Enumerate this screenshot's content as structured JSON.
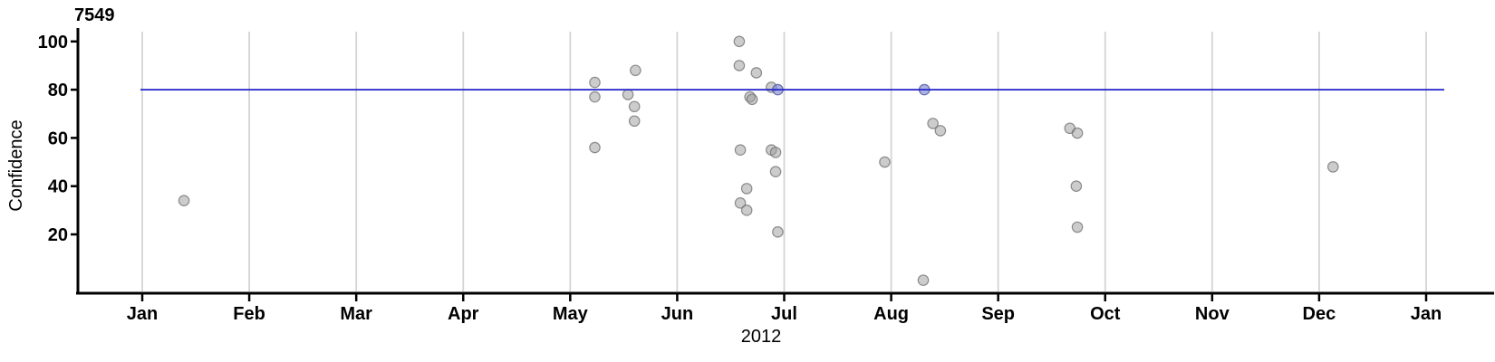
{
  "chart_data": {
    "type": "scatter",
    "title": "7549",
    "ylabel": "Confidence",
    "xlabel": "2012",
    "x_tick_labels": [
      "Jan",
      "Feb",
      "Mar",
      "Apr",
      "May",
      "Jun",
      "Jul",
      "Aug",
      "Sep",
      "Oct",
      "Nov",
      "Dec",
      "Jan"
    ],
    "y_ticks": [
      20,
      40,
      60,
      80,
      100
    ],
    "ylim": [
      0,
      105
    ],
    "grid": "vertical month gridlines only",
    "legend_position": "none",
    "hline": {
      "y": 80
    },
    "colors": {
      "hline": "#2222cc",
      "gridline": "#d4d4d4",
      "axis": "#000000",
      "point_fill": "rgba(153,153,153,0.50)",
      "point_stroke": "rgba(110,110,110,0.75)",
      "highlight_fill": "rgba(128,138,205,0.65)",
      "highlight_stroke": "rgba(88,96,170,0.90)"
    },
    "points": [
      {
        "month": 0.39,
        "confidence": 34,
        "highlight": false
      },
      {
        "month": 4.23,
        "confidence": 83,
        "highlight": false
      },
      {
        "month": 4.23,
        "confidence": 77,
        "highlight": false
      },
      {
        "month": 4.23,
        "confidence": 56,
        "highlight": false
      },
      {
        "month": 4.54,
        "confidence": 78,
        "highlight": false
      },
      {
        "month": 4.61,
        "confidence": 88,
        "highlight": false
      },
      {
        "month": 4.6,
        "confidence": 73,
        "highlight": false
      },
      {
        "month": 4.6,
        "confidence": 67,
        "highlight": false
      },
      {
        "month": 5.58,
        "confidence": 100,
        "highlight": false
      },
      {
        "month": 5.58,
        "confidence": 90,
        "highlight": false
      },
      {
        "month": 5.74,
        "confidence": 87,
        "highlight": false
      },
      {
        "month": 5.88,
        "confidence": 81,
        "highlight": false
      },
      {
        "month": 5.94,
        "confidence": 80,
        "highlight": true
      },
      {
        "month": 5.68,
        "confidence": 77,
        "highlight": false
      },
      {
        "month": 5.7,
        "confidence": 76,
        "highlight": false
      },
      {
        "month": 5.59,
        "confidence": 55,
        "highlight": false
      },
      {
        "month": 5.88,
        "confidence": 55,
        "highlight": false
      },
      {
        "month": 5.92,
        "confidence": 54,
        "highlight": false
      },
      {
        "month": 5.92,
        "confidence": 46,
        "highlight": false
      },
      {
        "month": 5.65,
        "confidence": 39,
        "highlight": false
      },
      {
        "month": 5.59,
        "confidence": 33,
        "highlight": false
      },
      {
        "month": 5.65,
        "confidence": 30,
        "highlight": false
      },
      {
        "month": 5.94,
        "confidence": 21,
        "highlight": false
      },
      {
        "month": 6.94,
        "confidence": 50,
        "highlight": false
      },
      {
        "month": 7.31,
        "confidence": 80,
        "highlight": true
      },
      {
        "month": 7.3,
        "confidence": 1,
        "highlight": false
      },
      {
        "month": 7.39,
        "confidence": 66,
        "highlight": false
      },
      {
        "month": 7.46,
        "confidence": 63,
        "highlight": false
      },
      {
        "month": 8.67,
        "confidence": 64,
        "highlight": false
      },
      {
        "month": 8.74,
        "confidence": 62,
        "highlight": false
      },
      {
        "month": 8.73,
        "confidence": 40,
        "highlight": false
      },
      {
        "month": 8.74,
        "confidence": 23,
        "highlight": false
      },
      {
        "month": 11.13,
        "confidence": 48,
        "highlight": false
      }
    ]
  }
}
